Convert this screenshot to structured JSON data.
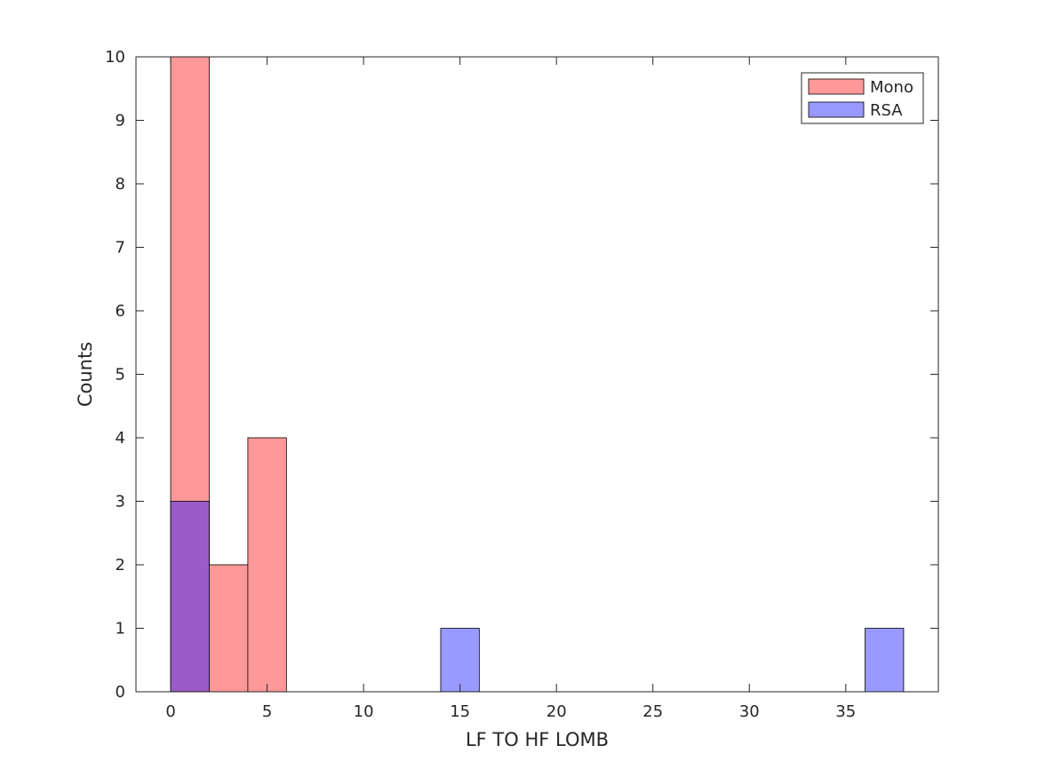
{
  "chart_data": {
    "type": "bar",
    "subtype": "overlaid-histogram",
    "title": "",
    "xlabel": "LF TO HF LOMB",
    "ylabel": "Counts",
    "xlim": [
      -1.8,
      39.8
    ],
    "ylim": [
      0,
      10
    ],
    "xticks": [
      0,
      5,
      10,
      15,
      20,
      25,
      30,
      35
    ],
    "yticks": [
      0,
      1,
      2,
      3,
      4,
      5,
      6,
      7,
      8,
      9,
      10
    ],
    "grid": false,
    "legend_position": "top-right",
    "bin_edges": [
      0,
      2,
      4,
      6,
      8,
      10,
      12,
      14,
      16,
      18,
      20,
      22,
      24,
      26,
      28,
      30,
      32,
      34,
      36,
      38
    ],
    "series": [
      {
        "name": "Mono",
        "color": "#ff9999",
        "values": [
          10,
          2,
          4,
          0,
          0,
          0,
          0,
          0,
          0,
          0,
          0,
          0,
          0,
          0,
          0,
          0,
          0,
          0,
          0
        ]
      },
      {
        "name": "RSA",
        "color": "#9999ff",
        "values": [
          3,
          0,
          0,
          0,
          0,
          0,
          0,
          1,
          0,
          0,
          0,
          0,
          0,
          0,
          0,
          0,
          0,
          0,
          1
        ]
      }
    ],
    "overlap_color": "#9a5bc7"
  }
}
